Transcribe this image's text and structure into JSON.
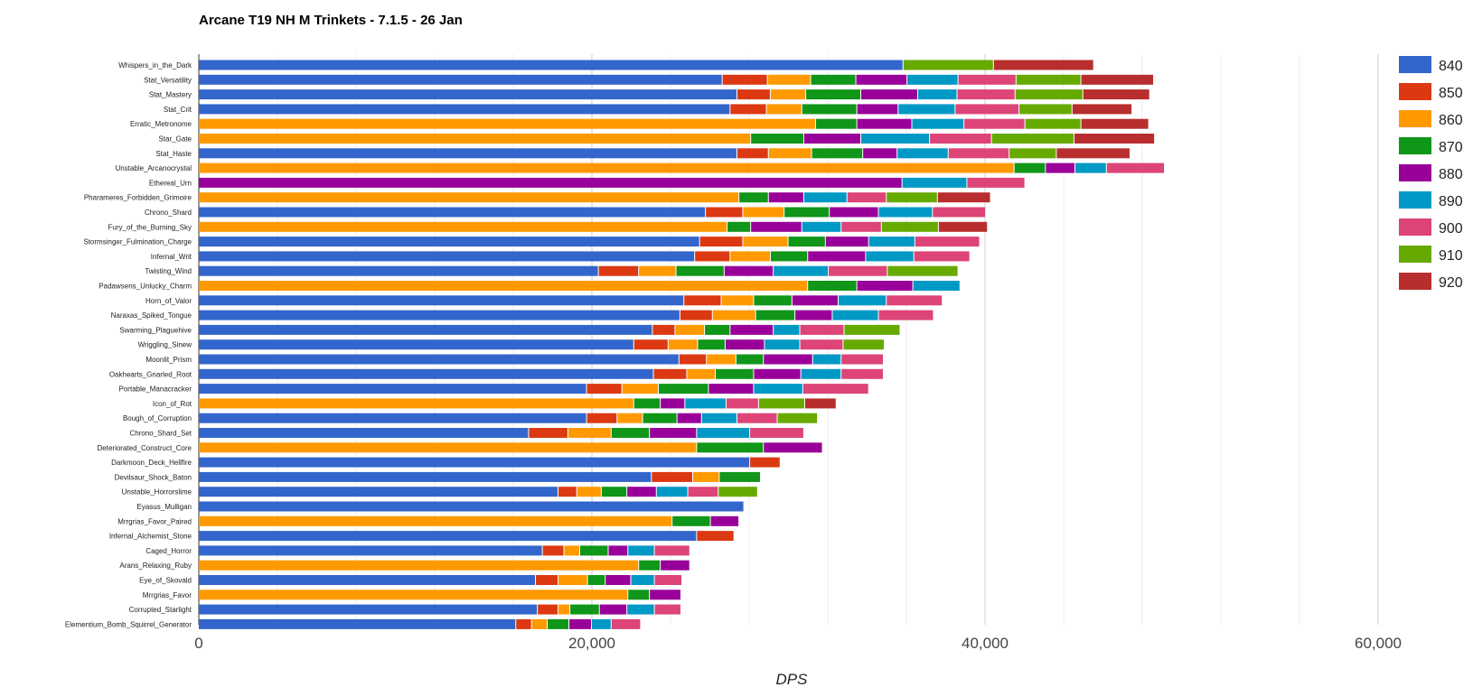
{
  "chart_data": {
    "type": "bar",
    "orientation": "horizontal",
    "stacked": true,
    "title": "Arcane T19 NH M Trinkets - 7.1.5 - 26 Jan",
    "xlabel": "DPS",
    "ylabel": "",
    "xlim": [
      0,
      60000
    ],
    "xticks": [
      0,
      20000,
      40000,
      60000
    ],
    "xtick_labels": [
      "0",
      "20,000",
      "40,000",
      "60,000"
    ],
    "grid": true,
    "legend_position": "right",
    "categories": [
      "Whispers_in_the_Dark",
      "Stat_Versatility",
      "Stat_Mastery",
      "Stat_Crit",
      "Erratic_Metronome",
      "Star_Gate",
      "Stat_Haste",
      "Unstable_Arcanocrystal",
      "Ethereal_Urn",
      "Pharameres_Forbidden_Grimoire",
      "Chrono_Shard",
      "Fury_of_the_Burning_Sky",
      "Stormsinger_Fulmination_Charge",
      "Infernal_Writ",
      "Twisting_Wind",
      "Padawsens_Unlucky_Charm",
      "Horn_of_Valor",
      "Naraxas_Spiked_Tongue",
      "Swarming_Plaguehive",
      "Wriggling_Sinew",
      "Moonlit_Prism",
      "Oakhearts_Gnarled_Root",
      "Portable_Manacracker",
      "Icon_of_Rot",
      "Bough_of_Corruption",
      "Chrono_Shard_Set",
      "Deteriorated_Construct_Core",
      "Darkmoon_Deck_Hellfire",
      "Devilsaur_Shock_Baton",
      "Unstable_Horrorslime",
      "Eyasus_Mulligan",
      "Mrrgrias_Favor_Paired",
      "Infernal_Alchemist_Stone",
      "Caged_Horror",
      "Arans_Relaxing_Ruby",
      "Eye_of_Skovald",
      "Mrrgrias_Favor",
      "Corrupted_Starlight",
      "Elementium_Bomb_Squirrel_Generator"
    ],
    "series": [
      {
        "name": "840",
        "color": "#3366cc",
        "values": [
          35850,
          26650,
          27400,
          27050,
          0,
          0,
          27400,
          0,
          0,
          0,
          25800,
          0,
          25500,
          25250,
          20350,
          0,
          24700,
          24500,
          23100,
          22150,
          24450,
          23150,
          19750,
          0,
          19750,
          16800,
          0,
          28050,
          23050,
          18300,
          27750,
          0,
          25350,
          17500,
          0,
          17150,
          0,
          17250,
          16150
        ]
      },
      {
        "name": "850",
        "color": "#dc3912",
        "values": [
          0,
          2300,
          1700,
          1850,
          0,
          0,
          1600,
          0,
          0,
          0,
          1900,
          0,
          2200,
          1800,
          2050,
          0,
          1900,
          1650,
          1150,
          1750,
          1400,
          1700,
          1800,
          0,
          1550,
          2000,
          0,
          1550,
          2100,
          950,
          0,
          0,
          1900,
          1100,
          0,
          1150,
          0,
          1050,
          800
        ]
      },
      {
        "name": "860",
        "color": "#ff9900",
        "values": [
          0,
          2200,
          1800,
          1800,
          31400,
          28100,
          2200,
          41500,
          0,
          27500,
          2100,
          26900,
          2300,
          2050,
          1900,
          31000,
          1650,
          2200,
          1500,
          1500,
          1500,
          1450,
          1850,
          22150,
          1300,
          2200,
          25350,
          0,
          1350,
          1250,
          0,
          24100,
          0,
          800,
          22400,
          1500,
          21850,
          600,
          800
        ]
      },
      {
        "name": "870",
        "color": "#109618",
        "values": [
          0,
          2300,
          2800,
          2800,
          2100,
          2700,
          2600,
          1600,
          0,
          1500,
          2300,
          1200,
          1900,
          1900,
          2450,
          2500,
          1950,
          2000,
          1300,
          1400,
          1400,
          1950,
          2550,
          1350,
          1750,
          1950,
          3400,
          0,
          2100,
          1300,
          0,
          1950,
          0,
          1450,
          1100,
          900,
          1100,
          1500,
          1100
        ]
      },
      {
        "name": "880",
        "color": "#990099",
        "values": [
          0,
          2600,
          2900,
          2100,
          2800,
          2900,
          1750,
          1500,
          35800,
          1800,
          2500,
          2600,
          2200,
          2950,
          2500,
          2850,
          2350,
          1900,
          2200,
          2000,
          2500,
          2400,
          2300,
          1250,
          1250,
          2400,
          3000,
          0,
          0,
          1500,
          0,
          1450,
          0,
          1000,
          1500,
          1300,
          1600,
          1400,
          1150
        ]
      },
      {
        "name": "890",
        "color": "#0099c6",
        "values": [
          0,
          2600,
          2000,
          2900,
          2650,
          3500,
          2600,
          1600,
          3300,
          2200,
          2750,
          2000,
          2350,
          2450,
          2800,
          2400,
          2450,
          2350,
          1350,
          1800,
          1450,
          2050,
          2500,
          2100,
          1800,
          2700,
          0,
          0,
          0,
          1600,
          0,
          0,
          0,
          1350,
          0,
          1200,
          0,
          1400,
          1000
        ]
      },
      {
        "name": "900",
        "color": "#dd4477",
        "values": [
          0,
          2950,
          2950,
          3250,
          3100,
          3150,
          3100,
          2950,
          2950,
          2000,
          2700,
          2050,
          3300,
          2850,
          3000,
          0,
          2850,
          2800,
          2250,
          2200,
          2150,
          2150,
          3350,
          1650,
          2050,
          2750,
          0,
          0,
          0,
          1550,
          0,
          0,
          0,
          1800,
          0,
          1400,
          0,
          1350,
          1500
        ]
      },
      {
        "name": "910",
        "color": "#66aa00",
        "values": [
          4600,
          3300,
          3450,
          2700,
          2850,
          4200,
          2400,
          0,
          0,
          2600,
          0,
          2900,
          0,
          0,
          3600,
          0,
          0,
          0,
          2850,
          2100,
          0,
          0,
          0,
          2350,
          2050,
          0,
          0,
          0,
          0,
          2000,
          0,
          0,
          0,
          0,
          0,
          0,
          0,
          0,
          0
        ]
      },
      {
        "name": "920",
        "color": "#b82e2e",
        "values": [
          5100,
          3700,
          3400,
          3050,
          3450,
          4100,
          3750,
          0,
          0,
          2700,
          0,
          2500,
          0,
          0,
          0,
          0,
          0,
          0,
          0,
          0,
          0,
          0,
          0,
          1600,
          0,
          0,
          0,
          0,
          0,
          0,
          0,
          0,
          0,
          0,
          0,
          0,
          0,
          0,
          0
        ]
      }
    ]
  }
}
